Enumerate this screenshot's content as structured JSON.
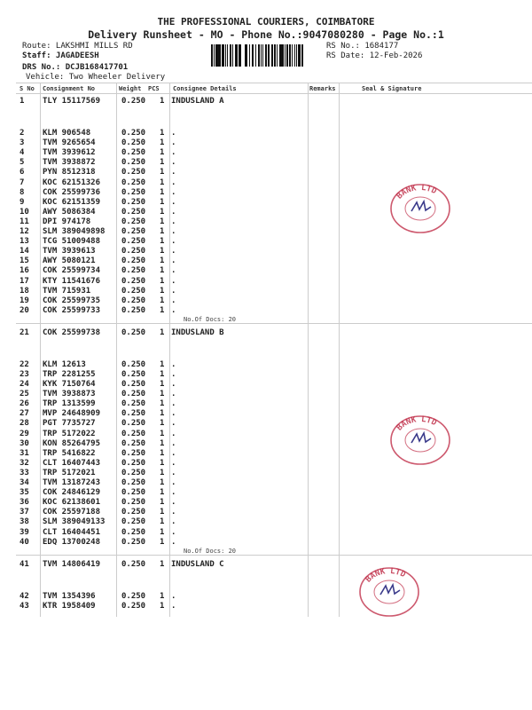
{
  "header": {
    "company": "THE PROFESSIONAL COURIERS, COIMBATORE",
    "subtitle": "Delivery Runsheet - MO - Phone No.:9047080280 - Page No.:1",
    "route": "Route: LAKSHMI MILLS RD",
    "staff": "Staff: JAGADEESH",
    "drs": "DRS No.: DCJB168417701",
    "vehicle": "Vehicle: Two Wheeler Delivery",
    "rs_no": "RS No.: 1684177",
    "rs_date": "RS Date: 12-Feb-2026"
  },
  "columns": {
    "sno": "S No",
    "consignment": "Consignment No",
    "weight": "Weight",
    "pcs": "PCS",
    "consignee": "Consignee Details",
    "remarks": "Remarks",
    "seal": "Seal & Signature"
  },
  "stamp_color": "#c0304a",
  "stamp_text": "BANK LTD",
  "groups": [
    {
      "consignee": "INDUSLAND A",
      "docs": "No.Of Docs: 20",
      "rows": [
        [
          "1",
          "TLY 15117569",
          "0.250",
          "1"
        ],
        [
          "2",
          "KLM 906548",
          "0.250",
          "1"
        ],
        [
          "3",
          "TVM 9265654",
          "0.250",
          "1"
        ],
        [
          "4",
          "TVM 3939612",
          "0.250",
          "1"
        ],
        [
          "5",
          "TVM 3938872",
          "0.250",
          "1"
        ],
        [
          "6",
          "PYN 8512318",
          "0.250",
          "1"
        ],
        [
          "7",
          "KOC 62151326",
          "0.250",
          "1"
        ],
        [
          "8",
          "COK 25599736",
          "0.250",
          "1"
        ],
        [
          "9",
          "KOC 62151359",
          "0.250",
          "1"
        ],
        [
          "10",
          "AWY 5086384",
          "0.250",
          "1"
        ],
        [
          "11",
          "DPI 974178",
          "0.250",
          "1"
        ],
        [
          "12",
          "SLM 389049898",
          "0.250",
          "1"
        ],
        [
          "13",
          "TCG 51009488",
          "0.250",
          "1"
        ],
        [
          "14",
          "TVM 3939613",
          "0.250",
          "1"
        ],
        [
          "15",
          "AWY 5080121",
          "0.250",
          "1"
        ],
        [
          "16",
          "COK 25599734",
          "0.250",
          "1"
        ],
        [
          "17",
          "KTY 11541676",
          "0.250",
          "1"
        ],
        [
          "18",
          "TVM 715931",
          "0.250",
          "1"
        ],
        [
          "19",
          "COK 25599735",
          "0.250",
          "1"
        ],
        [
          "20",
          "COK 25599733",
          "0.250",
          "1"
        ]
      ]
    },
    {
      "consignee": "INDUSLAND B",
      "docs": "No.Of Docs: 20",
      "rows": [
        [
          "21",
          "COK 25599738",
          "0.250",
          "1"
        ],
        [
          "22",
          "KLM 12613",
          "0.250",
          "1"
        ],
        [
          "23",
          "TRP 2281255",
          "0.250",
          "1"
        ],
        [
          "24",
          "KYK 7150764",
          "0.250",
          "1"
        ],
        [
          "25",
          "TVM 3938873",
          "0.250",
          "1"
        ],
        [
          "26",
          "TRP 1313599",
          "0.250",
          "1"
        ],
        [
          "27",
          "MVP 24648909",
          "0.250",
          "1"
        ],
        [
          "28",
          "PGT 7735727",
          "0.250",
          "1"
        ],
        [
          "29",
          "TRP 5172022",
          "0.250",
          "1"
        ],
        [
          "30",
          "KON 85264795",
          "0.250",
          "1"
        ],
        [
          "31",
          "TRP 5416822",
          "0.250",
          "1"
        ],
        [
          "32",
          "CLT 16407443",
          "0.250",
          "1"
        ],
        [
          "33",
          "TRP 5172021",
          "0.250",
          "1"
        ],
        [
          "34",
          "TVM 13187243",
          "0.250",
          "1"
        ],
        [
          "35",
          "COK 24846129",
          "0.250",
          "1"
        ],
        [
          "36",
          "KOC 62138601",
          "0.250",
          "1"
        ],
        [
          "37",
          "COK 25597188",
          "0.250",
          "1"
        ],
        [
          "38",
          "SLM 389049133",
          "0.250",
          "1"
        ],
        [
          "39",
          "CLT 16404451",
          "0.250",
          "1"
        ],
        [
          "40",
          "EDQ 13700248",
          "0.250",
          "1"
        ]
      ]
    },
    {
      "consignee": "INDUSLAND C",
      "docs": "",
      "rows": [
        [
          "41",
          "TVM 14806419",
          "0.250",
          "1"
        ],
        [
          "42",
          "TVM 1354396",
          "0.250",
          "1"
        ],
        [
          "43",
          "KTR 1958409",
          "0.250",
          "1"
        ]
      ]
    }
  ]
}
